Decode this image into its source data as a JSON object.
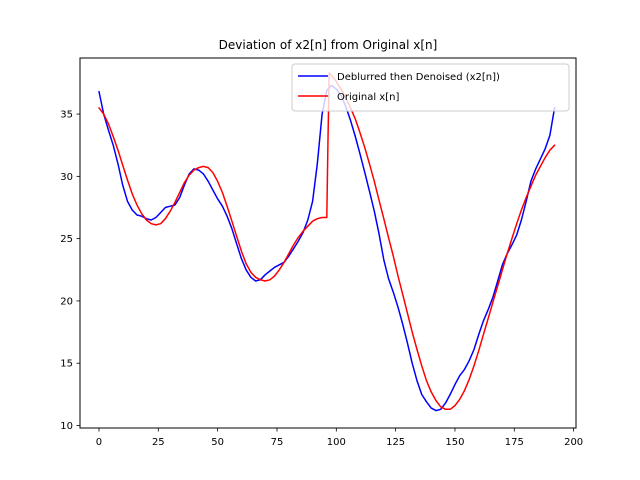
{
  "chart_data": {
    "type": "line",
    "title": "Deviation of x2[n] from Original x[n]",
    "xlabel": "",
    "ylabel": "",
    "xlim": [
      -8,
      201
    ],
    "ylim": [
      9.8,
      39.5
    ],
    "xticks": [
      0,
      25,
      50,
      75,
      100,
      125,
      150,
      175,
      200
    ],
    "yticks": [
      10,
      15,
      20,
      25,
      30,
      35
    ],
    "grid": false,
    "legend_position": "top-right",
    "series": [
      {
        "name": "Deblurred then Denoised (x2[n])",
        "color": "#0000ff",
        "x": [
          0,
          2,
          4,
          6,
          8,
          10,
          12,
          14,
          16,
          18,
          20,
          22,
          24,
          26,
          28,
          30,
          32,
          34,
          36,
          38,
          40,
          42,
          44,
          46,
          48,
          50,
          52,
          54,
          56,
          58,
          60,
          62,
          64,
          66,
          68,
          70,
          72,
          74,
          76,
          78,
          80,
          82,
          84,
          86,
          88,
          90,
          92,
          94,
          96,
          98,
          100,
          102,
          104,
          106,
          108,
          110,
          112,
          114,
          116,
          118,
          120,
          122,
          124,
          126,
          128,
          130,
          132,
          134,
          136,
          138,
          140,
          142,
          144,
          146,
          148,
          150,
          152,
          154,
          156,
          158,
          160,
          162,
          164,
          166,
          168,
          170,
          172,
          174,
          176,
          178,
          180,
          182,
          184,
          186,
          188,
          190,
          192
        ],
        "y": [
          36.8,
          35.0,
          33.7,
          32.5,
          31.0,
          29.3,
          28.0,
          27.3,
          26.9,
          26.8,
          26.6,
          26.5,
          26.7,
          27.1,
          27.5,
          27.6,
          27.7,
          28.3,
          29.3,
          30.2,
          30.6,
          30.5,
          30.2,
          29.6,
          28.9,
          28.2,
          27.6,
          26.8,
          25.8,
          24.6,
          23.4,
          22.5,
          21.9,
          21.6,
          21.7,
          22.1,
          22.4,
          22.7,
          22.9,
          23.1,
          23.6,
          24.2,
          24.8,
          25.5,
          26.5,
          28.0,
          31.0,
          35.0,
          36.9,
          37.3,
          37.0,
          36.5,
          35.6,
          34.5,
          33.2,
          31.8,
          30.3,
          28.8,
          27.2,
          25.4,
          23.3,
          21.8,
          20.7,
          19.5,
          18.1,
          16.6,
          15.0,
          13.6,
          12.5,
          11.9,
          11.4,
          11.2,
          11.3,
          11.8,
          12.5,
          13.3,
          14.0,
          14.5,
          15.2,
          16.1,
          17.3,
          18.4,
          19.3,
          20.3,
          21.6,
          22.9,
          23.8,
          24.5,
          25.3,
          26.5,
          28.0,
          29.6,
          30.6,
          31.4,
          32.2,
          33.3,
          35.5
        ]
      },
      {
        "name": "Original x[n]",
        "color": "#ff0000",
        "x": [
          0,
          2,
          4,
          6,
          8,
          10,
          12,
          14,
          16,
          18,
          20,
          22,
          24,
          26,
          28,
          30,
          32,
          34,
          36,
          38,
          40,
          42,
          44,
          46,
          48,
          50,
          52,
          54,
          56,
          58,
          60,
          62,
          64,
          66,
          68,
          70,
          72,
          74,
          76,
          78,
          80,
          82,
          84,
          86,
          88,
          90,
          92,
          94,
          96,
          96.5,
          97,
          98,
          100,
          102,
          104,
          106,
          108,
          110,
          112,
          114,
          116,
          118,
          120,
          122,
          124,
          126,
          128,
          130,
          132,
          134,
          136,
          138,
          140,
          142,
          144,
          146,
          148,
          150,
          152,
          154,
          156,
          158,
          160,
          162,
          164,
          166,
          168,
          170,
          172,
          174,
          176,
          178,
          180,
          182,
          184,
          186,
          188,
          190,
          192
        ],
        "y": [
          35.5,
          35.0,
          34.2,
          33.2,
          32.1,
          30.9,
          29.7,
          28.6,
          27.7,
          27.0,
          26.5,
          26.2,
          26.1,
          26.2,
          26.6,
          27.2,
          27.9,
          28.7,
          29.5,
          30.1,
          30.5,
          30.7,
          30.8,
          30.7,
          30.3,
          29.6,
          28.7,
          27.6,
          26.4,
          25.2,
          24.0,
          23.0,
          22.3,
          21.9,
          21.7,
          21.6,
          21.7,
          22.0,
          22.5,
          23.1,
          23.8,
          24.5,
          25.1,
          25.6,
          26.0,
          26.4,
          26.6,
          26.7,
          26.7,
          33.0,
          38.3,
          38.1,
          37.6,
          37.0,
          36.3,
          35.5,
          34.6,
          33.5,
          32.3,
          31.0,
          29.6,
          28.1,
          26.6,
          25.1,
          23.6,
          22.0,
          20.5,
          19.0,
          17.5,
          16.1,
          14.8,
          13.6,
          12.7,
          12.0,
          11.5,
          11.3,
          11.3,
          11.6,
          12.1,
          12.8,
          13.7,
          14.8,
          16.0,
          17.3,
          18.6,
          19.9,
          21.2,
          22.5,
          23.8,
          25.0,
          26.2,
          27.3,
          28.3,
          29.2,
          30.1,
          30.8,
          31.5,
          32.1,
          32.5
        ]
      }
    ]
  }
}
